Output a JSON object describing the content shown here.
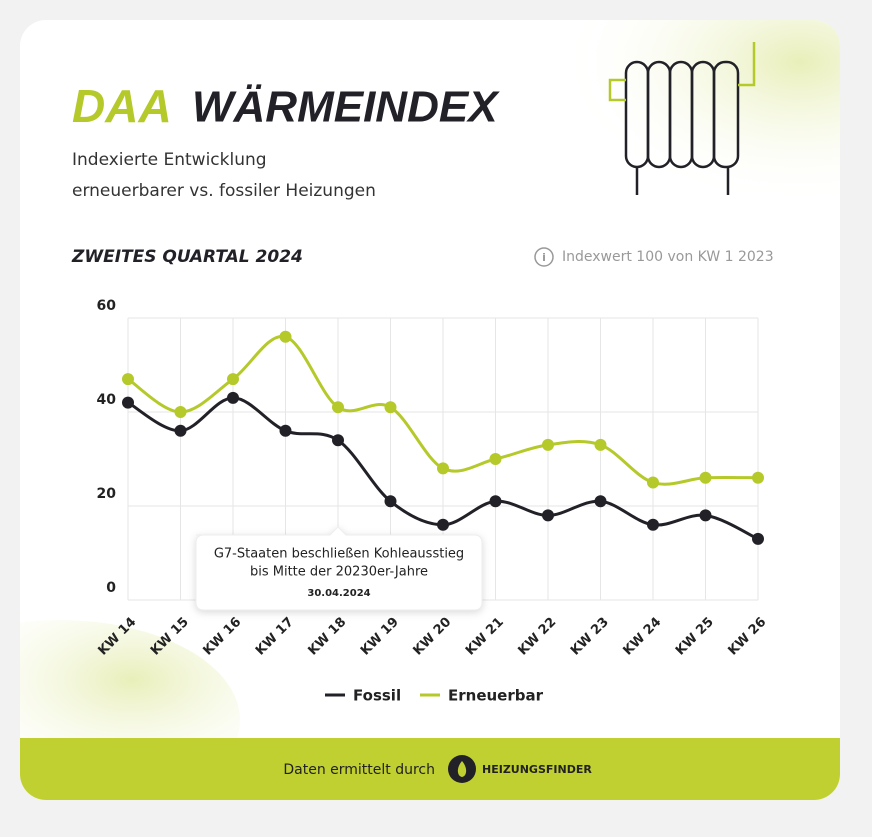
{
  "chart_data": {
    "type": "line",
    "logo": "DAA",
    "title": "WÄRMEINDEX",
    "subtitle": [
      "Indexierte Entwicklung",
      "erneuerbarer vs. fossiler Heizungen"
    ],
    "period": "ZWEITES QUARTAL 2024",
    "note": "Indexwert 100 von KW 1 2023",
    "categories": [
      "KW 14",
      "KW 15",
      "KW 16",
      "KW 17",
      "KW 18",
      "KW 19",
      "KW 20",
      "KW 21",
      "KW 22",
      "KW 23",
      "KW 24",
      "KW 25",
      "KW 26"
    ],
    "series": [
      {
        "name": "Fossil",
        "color": "#222128",
        "values": [
          42,
          36,
          43,
          36,
          34,
          21,
          16,
          21,
          18,
          21,
          16,
          18,
          13
        ]
      },
      {
        "name": "Erneuerbar",
        "color": "#b5c92a",
        "values": [
          47,
          40,
          47,
          56,
          41,
          41,
          28,
          30,
          33,
          33,
          25,
          26,
          26
        ]
      }
    ],
    "ylim": [
      0,
      60
    ],
    "yticks": [
      0,
      20,
      40,
      60
    ],
    "grid": true,
    "annotation": {
      "category": "KW 18",
      "text": [
        "G7-Staaten beschließen Kohleausstieg",
        "bis Mitte der 20230er-Jahre"
      ],
      "date": "30.04.2024"
    },
    "footer": {
      "text": "Daten ermittelt durch",
      "brand": "HEIZUNGSFINDER"
    }
  }
}
